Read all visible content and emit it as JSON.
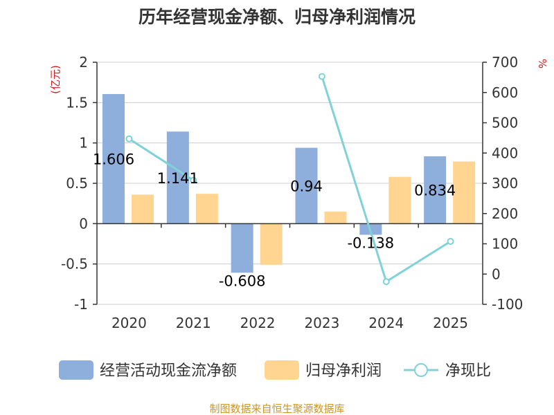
{
  "chart_data": {
    "type": "bar",
    "title": "历年经营现金净额、归母净利润情况",
    "categories": [
      "2020",
      "2021",
      "2022",
      "2023",
      "2024",
      "2025"
    ],
    "y_left": {
      "unit": "(亿元)",
      "ylim": [
        -1,
        2
      ],
      "ticks": [
        2,
        1.5,
        1,
        0.5,
        0,
        -0.5,
        -1
      ],
      "tick_labels": [
        "2",
        "1.5",
        "1",
        "0.5",
        "0",
        "-0.5",
        "-1"
      ]
    },
    "y_right": {
      "unit": "%",
      "ylim": [
        -100,
        700
      ],
      "ticks": [
        700,
        600,
        500,
        400,
        300,
        200,
        100,
        0,
        -100
      ],
      "tick_labels": [
        "700",
        "600",
        "500",
        "400",
        "300",
        "200",
        "100",
        "0",
        "-100"
      ]
    },
    "series": [
      {
        "name": "经营活动现金流净额",
        "kind": "bar",
        "axis": "left",
        "color": "#8eaedb",
        "values": [
          1.606,
          1.141,
          -0.608,
          0.94,
          -0.138,
          0.834
        ],
        "labels": [
          "1.606",
          "1.141",
          "-0.608",
          "0.94",
          "-0.138",
          "0.834"
        ]
      },
      {
        "name": "归母净利润",
        "kind": "bar",
        "axis": "left",
        "color": "#ffd591",
        "values": [
          0.36,
          0.37,
          -0.51,
          0.15,
          0.58,
          0.77
        ]
      },
      {
        "name": "净现比",
        "kind": "line",
        "axis": "right",
        "color": "#7fd2d8",
        "values": [
          447,
          310,
          null,
          653,
          -25,
          108
        ]
      }
    ],
    "legend": [
      "经营活动现金流净额",
      "归母净利润",
      "净现比"
    ],
    "legend_position": "bottom",
    "source": "制图数据来自恒生聚源数据库",
    "grid": true
  }
}
